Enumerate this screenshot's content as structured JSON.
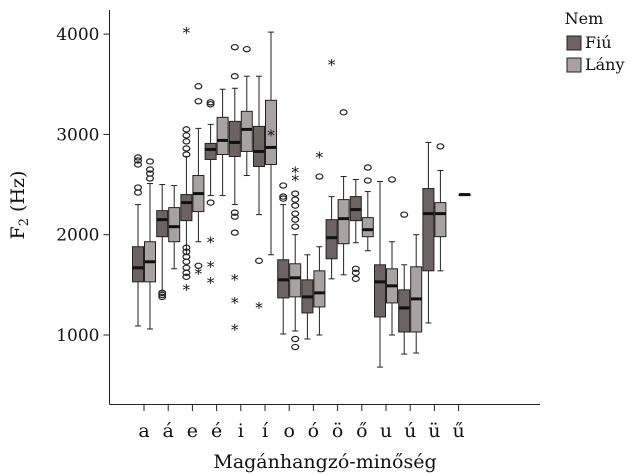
{
  "chart_data": {
    "type": "boxplot",
    "xlabel": "Magánhangzó-minőség",
    "ylabel": "F",
    "ylabel_sub": "2",
    "ylabel_unit": " (Hz)",
    "ylim": [
      0,
      4300
    ],
    "yticks": [
      1000,
      2000,
      3000,
      4000
    ],
    "grid": false,
    "legend_position": "top-right",
    "legend_title": "Nem",
    "categories": [
      "a",
      "á",
      "e",
      "é",
      "i",
      "í",
      "o",
      "ó",
      "ö",
      "ő",
      "u",
      "ú",
      "ü",
      "ű"
    ],
    "series": [
      {
        "name": "Fiú",
        "color": "#6e6363",
        "boxes": [
          {
            "min": 1090,
            "q1": 1530,
            "median": 1670,
            "q3": 1880,
            "max": 2300,
            "outliers": [
              2420,
              2470,
              2700,
              2740,
              2770
            ],
            "extremes": []
          },
          {
            "min": 1440,
            "q1": 1980,
            "median": 2150,
            "q3": 2240,
            "max": 2500,
            "outliers": [
              1380,
              1400,
              1420
            ],
            "extremes": []
          },
          {
            "min": 1800,
            "q1": 2140,
            "median": 2320,
            "q3": 2400,
            "max": 2780,
            "outliers": [
              1580,
              1620,
              1670,
              1730,
              1780,
              1830,
              1870,
              2800,
              2860,
              2930,
              2990,
              3050
            ],
            "extremes": [
              1460,
              4020
            ]
          },
          {
            "min": 2390,
            "q1": 2750,
            "median": 2850,
            "q3": 2910,
            "max": 3100,
            "outliers": [
              2320,
              3300,
              3320
            ],
            "extremes": [
              1930,
              1690,
              1530
            ]
          },
          {
            "min": 2300,
            "q1": 2780,
            "median": 2920,
            "q3": 3130,
            "max": 3460,
            "outliers": [
              2220,
              2180,
              2020,
              3580,
              3870
            ],
            "extremes": [
              1560,
              1330,
              1060
            ]
          },
          {
            "min": 2200,
            "q1": 2680,
            "median": 2830,
            "q3": 3080,
            "max": 3580,
            "outliers": [
              1740
            ],
            "extremes": [
              1280
            ]
          },
          {
            "min": 1010,
            "q1": 1370,
            "median": 1550,
            "q3": 1750,
            "max": 2300,
            "outliers": [
              2360,
              2380,
              2490
            ],
            "extremes": []
          },
          {
            "min": 960,
            "q1": 1220,
            "median": 1380,
            "q3": 1550,
            "max": 1800,
            "outliers": [],
            "extremes": []
          },
          {
            "min": 1560,
            "q1": 1760,
            "median": 1970,
            "q3": 2150,
            "max": 2380,
            "outliers": [],
            "extremes": [
              3700
            ]
          },
          {
            "min": 1920,
            "q1": 2140,
            "median": 2250,
            "q3": 2380,
            "max": 2550,
            "outliers": [
              1560,
              1620,
              1660
            ],
            "extremes": []
          },
          {
            "min": 680,
            "q1": 1180,
            "median": 1530,
            "q3": 1700,
            "max": 2530,
            "outliers": [],
            "extremes": []
          },
          {
            "min": 810,
            "q1": 1030,
            "median": 1270,
            "q3": 1450,
            "max": 1700,
            "outliers": [
              2200
            ],
            "extremes": []
          },
          {
            "min": 1120,
            "q1": 1640,
            "median": 2210,
            "q3": 2460,
            "max": 2920,
            "outliers": [],
            "extremes": []
          },
          null
        ]
      },
      {
        "name": "Lány",
        "color": "#a9a2a2",
        "boxes": [
          {
            "min": 1060,
            "q1": 1530,
            "median": 1730,
            "q3": 1930,
            "max": 2510,
            "outliers": [
              2560,
              2610,
              2650,
              2730
            ],
            "extremes": []
          },
          {
            "min": 1660,
            "q1": 1930,
            "median": 2080,
            "q3": 2270,
            "max": 2490,
            "outliers": [],
            "extremes": []
          },
          {
            "min": 1930,
            "q1": 2230,
            "median": 2410,
            "q3": 2590,
            "max": 3060,
            "outliers": [
              1690,
              3330,
              3480
            ],
            "extremes": [
              1620
            ]
          },
          {
            "min": 2390,
            "q1": 2800,
            "median": 2940,
            "q3": 3170,
            "max": 3450,
            "outliers": [],
            "extremes": []
          },
          {
            "min": 2590,
            "q1": 2830,
            "median": 3050,
            "q3": 3230,
            "max": 3580,
            "outliers": [
              3850
            ],
            "extremes": []
          },
          {
            "min": 1800,
            "q1": 2700,
            "median": 2870,
            "q3": 3340,
            "max": 4020,
            "outliers": [],
            "extremes": [
              3000
            ]
          },
          {
            "min": 1040,
            "q1": 1380,
            "median": 1570,
            "q3": 1710,
            "max": 2000,
            "outliers": [
              880,
              960,
              2080,
              2150,
              2210,
              2290,
              2350,
              2410
            ],
            "extremes": [
              2550,
              2630
            ]
          },
          {
            "min": 1000,
            "q1": 1280,
            "median": 1420,
            "q3": 1640,
            "max": 1880,
            "outliers": [
              2580
            ],
            "extremes": [
              2780
            ]
          },
          {
            "min": 1600,
            "q1": 1910,
            "median": 2160,
            "q3": 2350,
            "max": 2580,
            "outliers": [
              3220
            ],
            "extremes": []
          },
          {
            "min": 1840,
            "q1": 1980,
            "median": 2050,
            "q3": 2170,
            "max": 2430,
            "outliers": [
              2540,
              2670
            ],
            "extremes": []
          },
          {
            "min": 1000,
            "q1": 1320,
            "median": 1490,
            "q3": 1660,
            "max": 1930,
            "outliers": [
              2550
            ],
            "extremes": []
          },
          {
            "min": 820,
            "q1": 1030,
            "median": 1360,
            "q3": 1680,
            "max": 2000,
            "outliers": [],
            "extremes": []
          },
          {
            "min": 1640,
            "q1": 1980,
            "median": 2210,
            "q3": 2320,
            "max": 2640,
            "outliers": [
              2880
            ],
            "extremes": []
          },
          {
            "min": 2400,
            "q1": 2400,
            "median": 2400,
            "q3": 2400,
            "max": 2400,
            "outliers": [],
            "extremes": []
          }
        ]
      }
    ]
  }
}
